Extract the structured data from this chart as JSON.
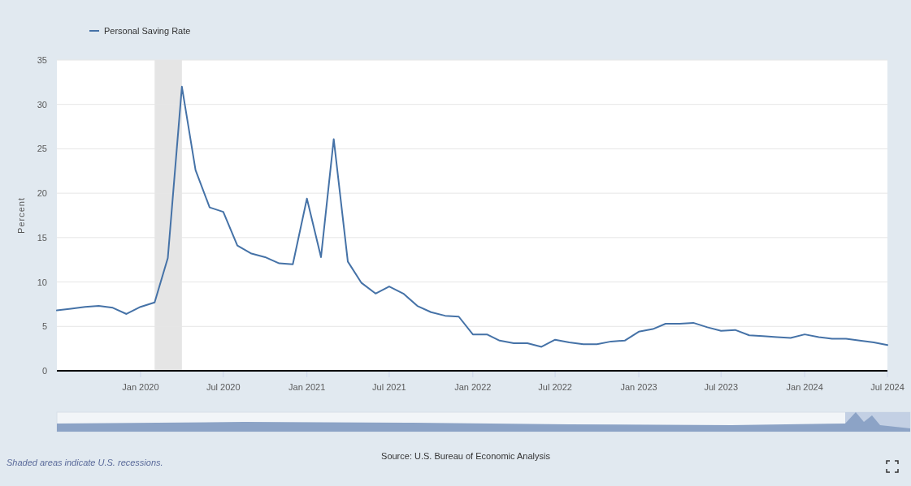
{
  "chart_data": {
    "type": "line",
    "ylabel": "Percent",
    "legend": "top left",
    "x": [
      "2019-07",
      "2019-08",
      "2019-09",
      "2019-10",
      "2019-11",
      "2019-12",
      "2020-01",
      "2020-02",
      "2020-03",
      "2020-04",
      "2020-05",
      "2020-06",
      "2020-07",
      "2020-08",
      "2020-09",
      "2020-10",
      "2020-11",
      "2020-12",
      "2021-01",
      "2021-02",
      "2021-03",
      "2021-04",
      "2021-05",
      "2021-06",
      "2021-07",
      "2021-08",
      "2021-09",
      "2021-10",
      "2021-11",
      "2021-12",
      "2022-01",
      "2022-02",
      "2022-03",
      "2022-04",
      "2022-05",
      "2022-06",
      "2022-07",
      "2022-08",
      "2022-09",
      "2022-10",
      "2022-11",
      "2022-12",
      "2023-01",
      "2023-02",
      "2023-03",
      "2023-04",
      "2023-05",
      "2023-06",
      "2023-07",
      "2023-08",
      "2023-09",
      "2023-10",
      "2023-11",
      "2023-12",
      "2024-01",
      "2024-02",
      "2024-03",
      "2024-04",
      "2024-05",
      "2024-06",
      "2024-07"
    ],
    "series": [
      {
        "name": "Personal Saving Rate",
        "color": "#4572a7",
        "values": [
          6.8,
          7.0,
          7.2,
          7.3,
          7.1,
          6.4,
          7.2,
          7.7,
          12.7,
          32.0,
          22.6,
          18.4,
          17.9,
          14.1,
          13.2,
          12.8,
          12.1,
          12.0,
          19.4,
          12.8,
          26.1,
          12.3,
          9.9,
          8.7,
          9.5,
          8.7,
          7.3,
          6.6,
          6.2,
          6.1,
          4.1,
          4.1,
          3.4,
          3.1,
          3.1,
          2.7,
          3.5,
          3.2,
          3.0,
          3.0,
          3.3,
          3.4,
          4.4,
          4.7,
          5.3,
          5.3,
          5.4,
          4.9,
          4.5,
          4.6,
          4.0,
          3.9,
          3.8,
          3.7,
          4.1,
          3.8,
          3.6,
          3.6,
          3.4,
          3.2,
          2.9
        ]
      }
    ],
    "xlim": [
      "2019-07",
      "2024-07"
    ],
    "xticks": [
      {
        "value": "2020-01",
        "label": "Jan 2020"
      },
      {
        "value": "2020-07",
        "label": "Jul 2020"
      },
      {
        "value": "2021-01",
        "label": "Jan 2021"
      },
      {
        "value": "2021-07",
        "label": "Jul 2021"
      },
      {
        "value": "2022-01",
        "label": "Jan 2022"
      },
      {
        "value": "2022-07",
        "label": "Jul 2022"
      },
      {
        "value": "2023-01",
        "label": "Jan 2023"
      },
      {
        "value": "2023-07",
        "label": "Jul 2023"
      },
      {
        "value": "2024-01",
        "label": "Jan 2024"
      },
      {
        "value": "2024-07",
        "label": "Jul 2024"
      }
    ],
    "ylim": [
      0,
      35
    ],
    "yticks": [
      0,
      5,
      10,
      15,
      20,
      25,
      30,
      35
    ],
    "grid": "y",
    "bands": [
      {
        "axis": "x",
        "from": "2020-02",
        "to": "2020-04",
        "color": "#e5e5e5"
      }
    ],
    "annotations": [
      "Shaded areas indicate U.S. recessions.",
      "Source: U.S. Bureau of Economic Analysis"
    ]
  }
}
